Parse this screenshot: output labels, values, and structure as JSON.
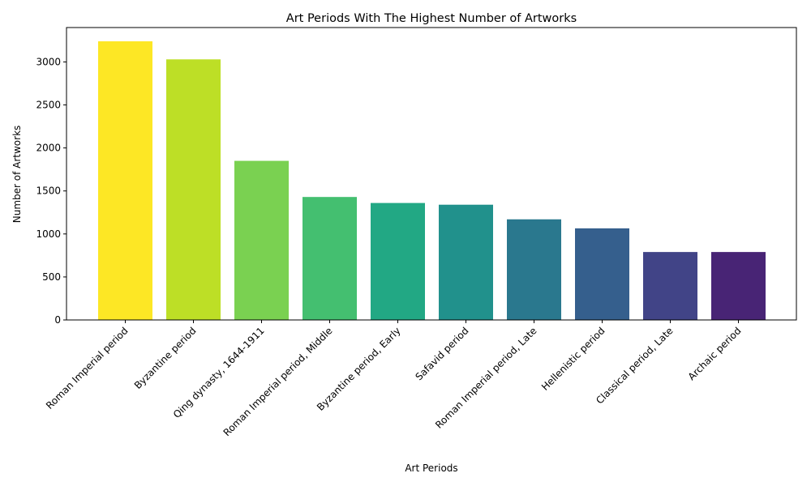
{
  "chart_data": {
    "type": "bar",
    "title": "Art Periods With The Highest Number of Artworks",
    "xlabel": "Art Periods",
    "ylabel": "Number of Artworks",
    "ylim": [
      0,
      3400
    ],
    "yticks": [
      0,
      500,
      1000,
      1500,
      2000,
      2500,
      3000
    ],
    "grid": false,
    "legend": "none",
    "categories": [
      "Roman Imperial period",
      "Byzantine period",
      "Qing dynasty, 1644-1911",
      "Roman Imperial period, Middle",
      "Byzantine period, Early",
      "Safavid period",
      "Roman Imperial period, Late",
      "Hellenistic period",
      "Classical period, Late",
      "Archaic period"
    ],
    "values": [
      3240,
      3030,
      1850,
      1430,
      1360,
      1340,
      1170,
      1065,
      790,
      790
    ],
    "colors": [
      "#fde725",
      "#bddf26",
      "#7ad151",
      "#44bf70",
      "#22a884",
      "#21918c",
      "#2a788e",
      "#355f8d",
      "#414487",
      "#482475"
    ]
  }
}
